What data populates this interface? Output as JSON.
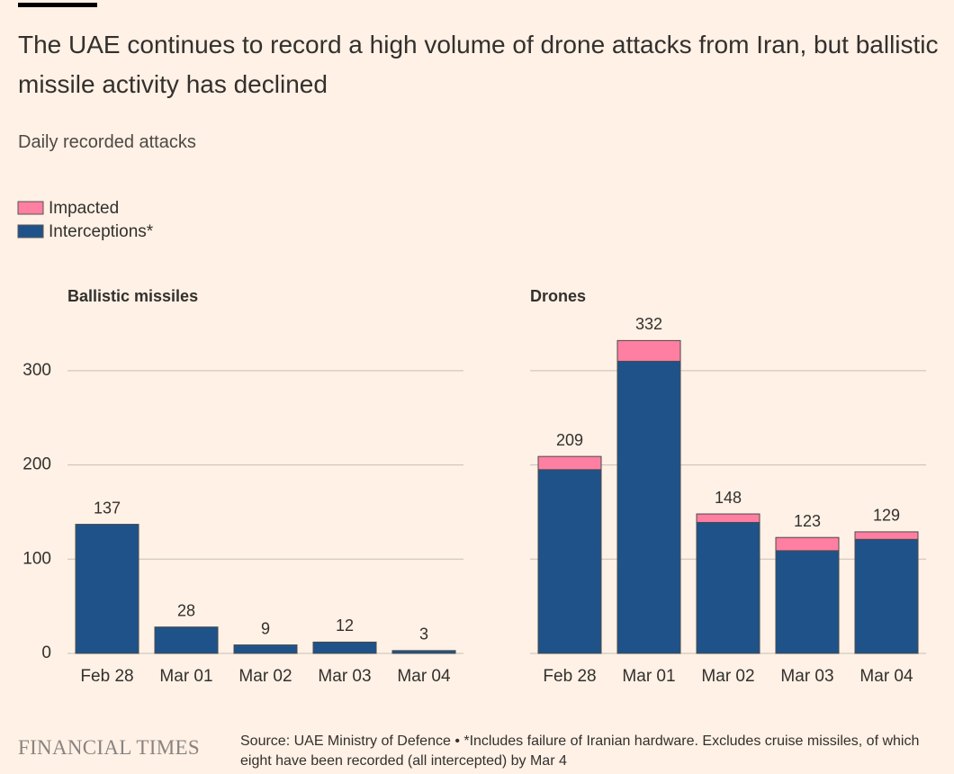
{
  "header": {
    "title": "The UAE continues to record a high volume of drone attacks from Iran, but ballistic missile activity has declined",
    "subtitle": "Daily recorded attacks"
  },
  "chart_data": [
    {
      "type": "stacked-bar",
      "title": "Ballistic missiles",
      "categories": [
        "Feb 28",
        "Mar 01",
        "Mar 02",
        "Mar 03",
        "Mar 04"
      ],
      "series": [
        {
          "name": "Interceptions*",
          "color": "#1f5289",
          "values": [
            137,
            28,
            9,
            12,
            3
          ]
        },
        {
          "name": "Impacted",
          "color": "#ff7fa3",
          "values": [
            0,
            0,
            0,
            0,
            0
          ]
        }
      ],
      "totals": [
        137,
        28,
        9,
        12,
        3
      ],
      "ylim": [
        0,
        340
      ],
      "yticks": [
        0,
        100,
        200,
        300
      ],
      "grid": true
    },
    {
      "type": "stacked-bar",
      "title": "Drones",
      "categories": [
        "Feb 28",
        "Mar 01",
        "Mar 02",
        "Mar 03",
        "Mar 04"
      ],
      "series": [
        {
          "name": "Interceptions*",
          "color": "#1f5289",
          "values": [
            195,
            310,
            139,
            109,
            121
          ]
        },
        {
          "name": "Impacted",
          "color": "#ff7fa3",
          "values": [
            14,
            22,
            9,
            14,
            8
          ]
        }
      ],
      "totals": [
        209,
        332,
        148,
        123,
        129
      ],
      "ylim": [
        0,
        340
      ],
      "yticks": [
        0,
        100,
        200,
        300
      ],
      "grid": true
    }
  ],
  "footer": {
    "brand": "FINANCIAL TIMES",
    "source": "Source: UAE Ministry of Defence • *Includes failure of Iranian hardware. Excludes cruise missiles, of which eight have been recorded (all intercepted) by Mar 4"
  }
}
